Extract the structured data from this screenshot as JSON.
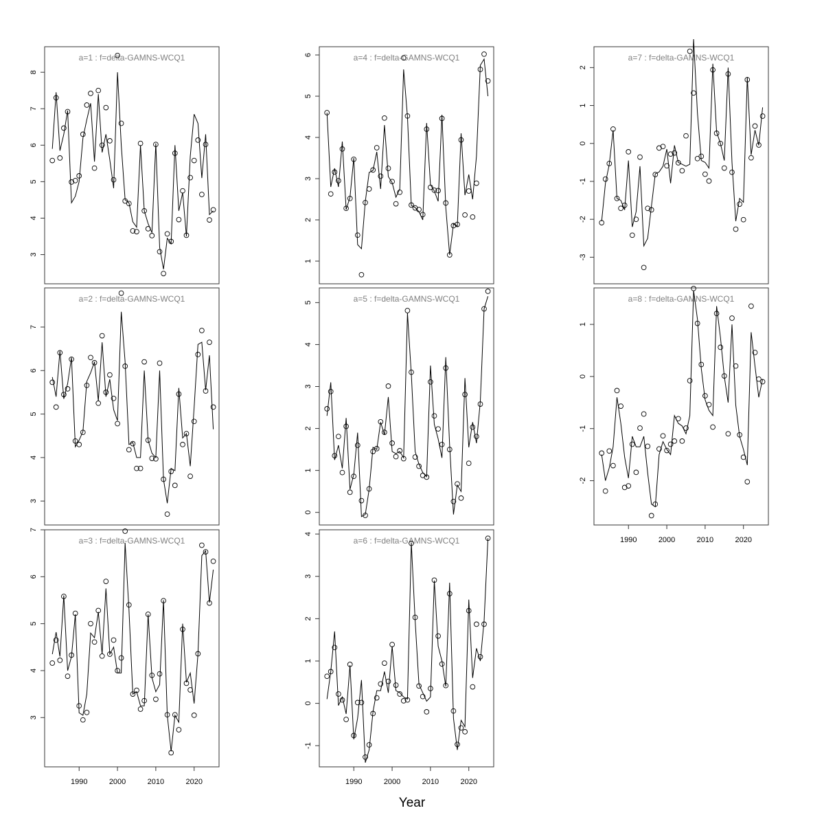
{
  "figure": {
    "xlabel": "Year"
  },
  "chart_data": [
    {
      "type": "line",
      "title": "a=1  :  f=delta-GAMNS-WCQ1",
      "xlim": [
        1981,
        2026.5
      ],
      "ylim": [
        2.2,
        8.7
      ],
      "xticks": [
        1990,
        2000,
        2010,
        2020
      ],
      "yticks": [
        3,
        4,
        5,
        6,
        7,
        8
      ],
      "x": [
        1983,
        1984,
        1985,
        1986,
        1987,
        1988,
        1989,
        1990,
        1991,
        1992,
        1993,
        1994,
        1995,
        1996,
        1997,
        1998,
        1999,
        2000,
        2001,
        2002,
        2003,
        2004,
        2005,
        2006,
        2007,
        2008,
        2009,
        2010,
        2011,
        2012,
        2013,
        2014,
        2015,
        2016,
        2017,
        2018,
        2019,
        2020,
        2021,
        2022,
        2023,
        2024,
        2025
      ],
      "fitted": [
        5.9,
        7.45,
        5.85,
        6.3,
        6.95,
        4.42,
        4.6,
        5.0,
        6.2,
        6.7,
        7.15,
        5.55,
        7.4,
        5.8,
        6.3,
        5.6,
        4.82,
        8.0,
        6.0,
        4.5,
        4.42,
        3.9,
        3.75,
        6.0,
        4.2,
        3.85,
        3.6,
        6.05,
        3.2,
        2.6,
        3.45,
        3.3,
        6.0,
        4.2,
        4.7,
        3.5,
        5.7,
        6.85,
        6.6,
        5.1,
        6.3,
        4.1,
        4.2
      ],
      "observed": [
        5.58,
        7.3,
        5.65,
        6.47,
        6.92,
        4.99,
        5.03,
        5.16,
        6.3,
        7.1,
        7.42,
        5.37,
        7.5,
        6.0,
        7.03,
        6.12,
        5.05,
        8.46,
        6.6,
        4.47,
        4.4,
        3.65,
        3.63,
        6.05,
        4.2,
        3.71,
        3.52,
        6.02,
        3.08,
        2.48,
        3.57,
        3.36,
        5.78,
        3.96,
        4.75,
        3.53,
        5.11,
        5.58,
        6.14,
        4.65,
        6.02,
        3.95,
        4.23
      ]
    },
    {
      "type": "line",
      "title": "a=2  :  f=delta-GAMNS-WCQ1",
      "xlim": [
        1981,
        2026.5
      ],
      "ylim": [
        2.45,
        7.9
      ],
      "xticks": [
        1990,
        2000,
        2010,
        2020
      ],
      "yticks": [
        3,
        4,
        5,
        6,
        7
      ],
      "x": [
        1983,
        1984,
        1985,
        1986,
        1987,
        1988,
        1989,
        1990,
        1991,
        1992,
        1993,
        1994,
        1995,
        1996,
        1997,
        1998,
        1999,
        2000,
        2001,
        2002,
        2003,
        2004,
        2005,
        2006,
        2007,
        2008,
        2009,
        2010,
        2011,
        2012,
        2013,
        2014,
        2015,
        2016,
        2017,
        2018,
        2019,
        2020,
        2021,
        2022,
        2023,
        2024,
        2025
      ],
      "fitted": [
        5.85,
        5.4,
        6.45,
        5.35,
        5.7,
        6.3,
        4.25,
        4.4,
        4.6,
        5.75,
        5.95,
        6.2,
        5.3,
        6.65,
        5.4,
        5.8,
        5.1,
        4.85,
        7.35,
        6.2,
        4.3,
        4.35,
        4.0,
        4.0,
        6.0,
        4.4,
        4.1,
        4.0,
        6.0,
        3.5,
        2.95,
        3.75,
        3.7,
        5.6,
        4.45,
        4.55,
        3.8,
        5.15,
        6.6,
        6.65,
        5.55,
        6.35,
        4.65
      ],
      "observed": [
        5.73,
        5.16,
        6.41,
        5.45,
        5.58,
        6.26,
        4.38,
        4.3,
        4.58,
        5.66,
        6.3,
        6.18,
        5.25,
        6.8,
        5.5,
        5.9,
        5.36,
        4.78,
        7.78,
        6.1,
        4.18,
        4.32,
        3.75,
        3.75,
        6.2,
        4.4,
        3.98,
        3.97,
        6.17,
        3.5,
        2.7,
        3.68,
        3.36,
        5.46,
        4.3,
        4.55,
        3.57,
        4.83,
        6.37,
        6.92,
        5.53,
        6.65,
        5.16
      ]
    },
    {
      "type": "line",
      "title": "a=3  :  f=delta-GAMNS-WCQ1",
      "xlim": [
        1981,
        2026.5
      ],
      "ylim": [
        1.95,
        7.0
      ],
      "xticks": [
        1990,
        2000,
        2010,
        2020
      ],
      "yticks": [
        3,
        4,
        5,
        6,
        7
      ],
      "x": [
        1983,
        1984,
        1985,
        1986,
        1987,
        1988,
        1989,
        1990,
        1991,
        1992,
        1993,
        1994,
        1995,
        1996,
        1997,
        1998,
        1999,
        2000,
        2001,
        2002,
        2003,
        2004,
        2005,
        2006,
        2007,
        2008,
        2009,
        2010,
        2011,
        2012,
        2013,
        2014,
        2015,
        2016,
        2017,
        2018,
        2019,
        2020,
        2021,
        2022,
        2023,
        2024,
        2025
      ],
      "fitted": [
        4.35,
        4.82,
        4.3,
        5.6,
        4.0,
        4.3,
        5.2,
        3.1,
        3.05,
        3.5,
        4.8,
        4.7,
        5.25,
        4.35,
        5.75,
        4.35,
        4.5,
        3.95,
        3.95,
        6.72,
        5.3,
        3.5,
        3.55,
        3.25,
        3.25,
        5.2,
        3.85,
        3.55,
        3.7,
        5.5,
        3.05,
        2.28,
        3.05,
        2.9,
        5.0,
        3.75,
        3.95,
        3.3,
        4.35,
        6.45,
        6.55,
        5.45,
        6.15
      ],
      "observed": [
        4.16,
        4.65,
        4.22,
        5.58,
        3.88,
        4.33,
        5.22,
        3.25,
        2.95,
        3.11,
        5.0,
        4.61,
        5.28,
        4.31,
        5.9,
        4.35,
        4.65,
        4.0,
        4.27,
        6.97,
        5.4,
        3.5,
        3.58,
        3.18,
        3.36,
        5.2,
        3.9,
        3.39,
        3.93,
        5.49,
        3.06,
        2.25,
        3.06,
        2.74,
        4.88,
        3.73,
        3.59,
        3.05,
        4.36,
        6.67,
        6.53,
        5.44,
        6.33
      ]
    },
    {
      "type": "line",
      "title": "a=4  :  f=delta-GAMNS-WCQ1",
      "xlim": [
        1981,
        2026.5
      ],
      "ylim": [
        0.45,
        6.2
      ],
      "xticks": [
        1990,
        2000,
        2010,
        2020
      ],
      "yticks": [
        1,
        2,
        3,
        4,
        5,
        6
      ],
      "x": [
        1983,
        1984,
        1985,
        1986,
        1987,
        1988,
        1989,
        1990,
        1991,
        1992,
        1993,
        1994,
        1995,
        1996,
        1997,
        1998,
        1999,
        2000,
        2001,
        2002,
        2003,
        2004,
        2005,
        2006,
        2007,
        2008,
        2009,
        2010,
        2011,
        2012,
        2013,
        2014,
        2015,
        2016,
        2017,
        2018,
        2019,
        2020,
        2021,
        2022,
        2023,
        2024,
        2025
      ],
      "fitted": [
        4.6,
        2.8,
        3.25,
        2.8,
        3.9,
        2.25,
        2.55,
        3.5,
        1.4,
        1.3,
        2.45,
        3.15,
        3.2,
        3.65,
        2.75,
        4.3,
        3.05,
        2.9,
        2.55,
        2.75,
        5.65,
        4.5,
        2.35,
        2.3,
        2.2,
        2.0,
        4.35,
        2.85,
        2.7,
        2.45,
        4.55,
        2.3,
        1.15,
        1.9,
        1.85,
        4.1,
        2.6,
        3.1,
        2.5,
        3.55,
        5.75,
        5.9,
        5.0
      ],
      "observed": [
        4.6,
        2.63,
        3.16,
        2.95,
        3.72,
        2.28,
        2.52,
        3.47,
        1.63,
        0.67,
        2.42,
        2.75,
        3.21,
        3.75,
        3.06,
        4.47,
        3.25,
        2.93,
        2.39,
        2.67,
        5.93,
        4.52,
        2.36,
        2.29,
        2.25,
        2.13,
        4.2,
        2.79,
        2.72,
        2.71,
        4.46,
        2.41,
        1.15,
        1.86,
        1.89,
        3.94,
        2.12,
        2.7,
        2.07,
        2.89,
        5.65,
        6.02,
        5.37
      ]
    },
    {
      "type": "line",
      "title": "a=5  :  f=delta-GAMNS-WCQ1",
      "xlim": [
        1981,
        2026.5
      ],
      "ylim": [
        -0.3,
        5.35
      ],
      "xticks": [
        1990,
        2000,
        2010,
        2020
      ],
      "yticks": [
        0,
        1,
        2,
        3,
        4,
        5
      ],
      "x": [
        1983,
        1984,
        1985,
        1986,
        1987,
        1988,
        1989,
        1990,
        1991,
        1992,
        1993,
        1994,
        1995,
        1996,
        1997,
        1998,
        1999,
        2000,
        2001,
        2002,
        2003,
        2004,
        2005,
        2006,
        2007,
        2008,
        2009,
        2010,
        2011,
        2012,
        2013,
        2014,
        2015,
        2016,
        2017,
        2018,
        2019,
        2020,
        2021,
        2022,
        2023,
        2024,
        2025
      ],
      "fitted": [
        2.3,
        3.1,
        1.25,
        1.6,
        1.05,
        2.25,
        0.55,
        0.9,
        1.9,
        -0.1,
        -0.05,
        0.55,
        1.55,
        1.5,
        2.15,
        1.85,
        2.75,
        1.45,
        1.4,
        1.45,
        1.3,
        4.75,
        3.3,
        1.45,
        1.15,
        0.95,
        0.85,
        3.5,
        2.1,
        1.75,
        1.3,
        3.7,
        1.6,
        -0.05,
        0.65,
        0.5,
        3.2,
        1.55,
        2.15,
        1.65,
        2.65,
        4.85,
        5.15
      ],
      "observed": [
        2.47,
        2.88,
        1.35,
        1.81,
        0.95,
        2.05,
        0.48,
        0.86,
        1.6,
        0.28,
        -0.07,
        0.56,
        1.45,
        1.52,
        2.16,
        1.91,
        3.01,
        1.65,
        1.33,
        1.47,
        1.28,
        4.81,
        3.34,
        1.32,
        1.1,
        0.88,
        0.84,
        3.11,
        2.3,
        1.99,
        1.62,
        3.44,
        1.5,
        0.26,
        0.68,
        0.34,
        2.81,
        1.17,
        2.03,
        1.81,
        2.58,
        4.85,
        5.27
      ]
    },
    {
      "type": "line",
      "title": "a=6  :  f=delta-GAMNS-WCQ1",
      "xlim": [
        1981,
        2026.5
      ],
      "ylim": [
        -1.5,
        4.1
      ],
      "xticks": [
        1990,
        2000,
        2010,
        2020
      ],
      "yticks": [
        -1,
        0,
        1,
        2,
        3,
        4
      ],
      "x": [
        1983,
        1984,
        1985,
        1986,
        1987,
        1988,
        1989,
        1990,
        1991,
        1992,
        1993,
        1994,
        1995,
        1996,
        1997,
        1998,
        1999,
        2000,
        2001,
        2002,
        2003,
        2004,
        2005,
        2006,
        2007,
        2008,
        2009,
        2010,
        2011,
        2012,
        2013,
        2014,
        2015,
        2016,
        2017,
        2018,
        2019,
        2020,
        2021,
        2022,
        2023,
        2024,
        2025
      ],
      "fitted": [
        0.1,
        0.75,
        1.7,
        -0.05,
        0.15,
        -0.25,
        0.9,
        -0.85,
        -0.35,
        0.55,
        -1.4,
        -1.1,
        -0.2,
        0.3,
        0.3,
        0.75,
        0.25,
        1.35,
        0.3,
        0.25,
        0.15,
        0.1,
        3.8,
        1.95,
        0.45,
        0.25,
        0.05,
        0.15,
        2.9,
        1.35,
        1.0,
        0.4,
        2.85,
        -0.35,
        -1.1,
        -0.4,
        -0.55,
        2.45,
        0.6,
        1.3,
        1.0,
        1.95,
        3.9
      ],
      "observed": [
        0.64,
        0.75,
        1.32,
        0.22,
        0.08,
        -0.38,
        0.92,
        -0.76,
        0.02,
        0.02,
        -1.27,
        -0.98,
        -0.24,
        0.13,
        0.46,
        0.95,
        0.52,
        1.39,
        0.43,
        0.22,
        0.06,
        0.08,
        3.78,
        2.03,
        0.41,
        0.16,
        -0.2,
        0.35,
        2.91,
        1.59,
        0.93,
        0.42,
        2.59,
        -0.18,
        -0.97,
        -0.58,
        -0.67,
        2.19,
        0.39,
        1.87,
        1.1,
        1.87,
        3.9
      ]
    },
    {
      "type": "line",
      "title": "a=7  :  f=delta-GAMNS-WCQ1",
      "xlim": [
        1981,
        2026.5
      ],
      "ylim": [
        -3.7,
        2.55
      ],
      "xticks": [
        1990,
        2000,
        2010,
        2020
      ],
      "yticks": [
        -3,
        -2,
        -1,
        0,
        1,
        2
      ],
      "x": [
        1983,
        1984,
        1985,
        1986,
        1987,
        1988,
        1989,
        1990,
        1991,
        1992,
        1993,
        1994,
        1995,
        1996,
        1997,
        1998,
        1999,
        2000,
        2001,
        2002,
        2003,
        2004,
        2005,
        2006,
        2007,
        2008,
        2009,
        2010,
        2011,
        2012,
        2013,
        2014,
        2015,
        2016,
        2017,
        2018,
        2019,
        2020,
        2021,
        2022,
        2023,
        2024,
        2025
      ],
      "fitted": [
        -2.05,
        -1.05,
        -0.55,
        0.35,
        -1.45,
        -1.5,
        -1.75,
        -0.45,
        -2.2,
        -1.8,
        -0.6,
        -2.7,
        -2.5,
        -1.65,
        -0.8,
        -0.75,
        -0.6,
        -0.15,
        -1.05,
        -0.05,
        -0.5,
        -0.55,
        -0.6,
        -0.55,
        2.75,
        0.8,
        -0.45,
        -0.5,
        -0.65,
        2.1,
        0.3,
        0.0,
        -0.45,
        2.0,
        -0.5,
        -2.05,
        -1.45,
        -1.55,
        1.75,
        -0.3,
        0.35,
        -0.05,
        0.95
      ],
      "observed": [
        -2.09,
        -0.94,
        -0.53,
        0.38,
        -1.45,
        -1.71,
        -1.63,
        -0.22,
        -2.42,
        -2.0,
        -0.36,
        -3.27,
        -1.71,
        -1.75,
        -0.82,
        -0.12,
        -0.08,
        -0.59,
        -0.28,
        -0.25,
        -0.51,
        -0.72,
        0.2,
        2.43,
        1.33,
        -0.4,
        -0.34,
        -0.81,
        -0.99,
        1.94,
        0.27,
        0.0,
        -0.65,
        1.83,
        -0.76,
        -2.26,
        -1.6,
        -2.01,
        1.68,
        -0.38,
        0.46,
        -0.04,
        0.72
      ]
    },
    {
      "type": "line",
      "title": "a=8  :  f=delta-GAMNS-WCQ1",
      "xlim": [
        1981,
        2026.5
      ],
      "ylim": [
        -2.85,
        1.7
      ],
      "xticks": [
        1990,
        2000,
        2010,
        2020
      ],
      "yticks": [
        -2,
        -1,
        0,
        1
      ],
      "x": [
        1983,
        1984,
        1985,
        1986,
        1987,
        1988,
        1989,
        1990,
        1991,
        1992,
        1993,
        1994,
        1995,
        1996,
        1997,
        1998,
        1999,
        2000,
        2001,
        2002,
        2003,
        2004,
        2005,
        2006,
        2007,
        2008,
        2009,
        2010,
        2011,
        2012,
        2013,
        2014,
        2015,
        2016,
        2017,
        2018,
        2019,
        2020,
        2021,
        2022,
        2023,
        2024,
        2025
      ],
      "fitted": [
        -1.5,
        -2.0,
        -1.75,
        -1.35,
        -0.4,
        -0.9,
        -1.55,
        -1.95,
        -1.15,
        -1.35,
        -1.35,
        -1.15,
        -1.85,
        -2.45,
        -2.5,
        -1.5,
        -1.25,
        -1.4,
        -1.5,
        -0.75,
        -0.9,
        -0.95,
        -1.1,
        -0.75,
        1.65,
        1.1,
        0.15,
        -0.45,
        -0.65,
        -0.75,
        1.35,
        0.75,
        0.0,
        -0.5,
        1.0,
        -0.55,
        -1.15,
        -1.4,
        -1.7,
        0.85,
        0.2,
        -0.4,
        -0.05
      ],
      "observed": [
        -1.47,
        -2.2,
        -1.43,
        -1.71,
        -0.27,
        -0.57,
        -2.13,
        -2.1,
        -1.3,
        -1.84,
        -0.99,
        -0.72,
        -1.34,
        -2.67,
        -2.45,
        -1.39,
        -1.14,
        -1.42,
        -1.3,
        -1.24,
        -0.81,
        -1.24,
        -0.99,
        -0.08,
        1.69,
        1.02,
        0.23,
        -0.37,
        -0.54,
        -0.97,
        1.21,
        0.56,
        0.01,
        -1.1,
        1.12,
        0.2,
        -1.12,
        -1.55,
        -2.02,
        1.35,
        0.46,
        -0.05,
        -0.1
      ]
    }
  ]
}
